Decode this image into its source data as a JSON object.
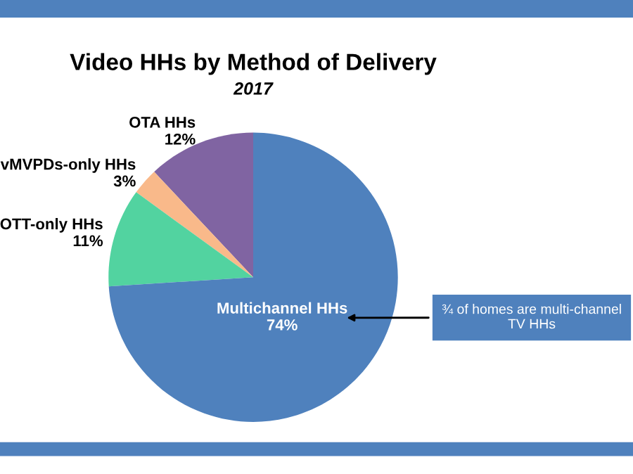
{
  "chart_data": {
    "type": "pie",
    "title": "Video HHs by Method of Delivery",
    "subtitle": "2017",
    "categories": [
      "OTA HHs",
      "vMVPDs-only HHs",
      "OTT-only HHs",
      "Multichannel HHs"
    ],
    "values": [
      12,
      3,
      11,
      74
    ],
    "colors": [
      "#8064a2",
      "#f9b98a",
      "#52d3a0",
      "#4f81bd"
    ],
    "value_labels": [
      "12%",
      "3%",
      "11%",
      "74%"
    ],
    "legend": false,
    "annotations": [
      "¾ of homes are multi-channel TV HHs"
    ]
  }
}
